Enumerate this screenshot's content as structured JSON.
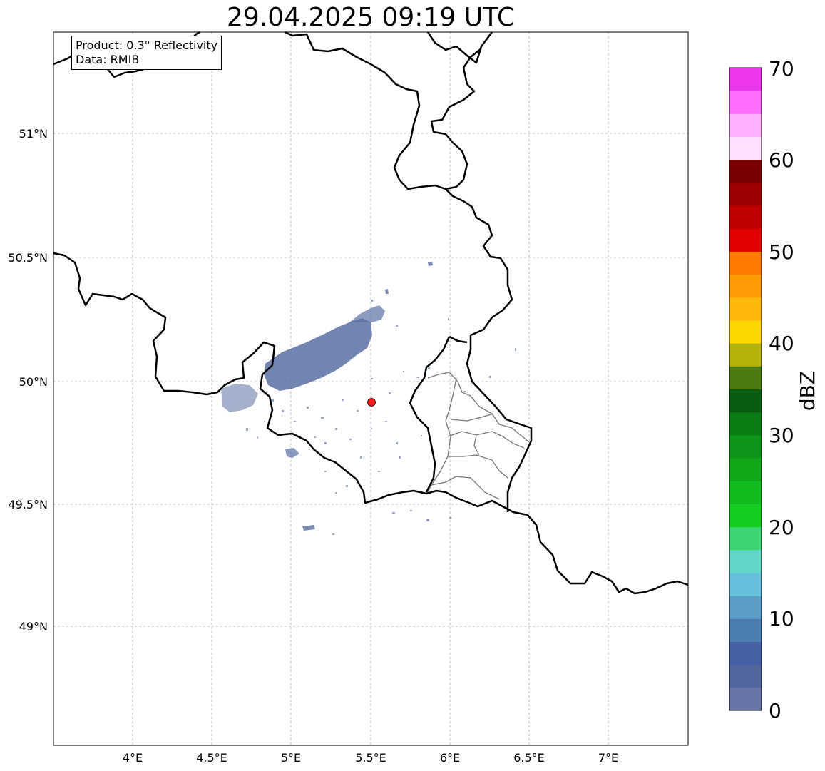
{
  "title": "29.04.2025 09:19 UTC",
  "info": {
    "product": "Product: 0.3° Reflectivity",
    "source": "Data: RMIB"
  },
  "map": {
    "lon_ticks": [
      "4°E",
      "4.5°E",
      "5°E",
      "5.5°E",
      "6°E",
      "6.5°E",
      "7°E"
    ],
    "lat_ticks": [
      "51°N",
      "50.5°N",
      "50°N",
      "49.5°N",
      "49°N"
    ],
    "radar_site": {
      "lon": 5.5,
      "lat": 49.91,
      "color": "#ff1a1a"
    },
    "echo_color": "#5a6fa3"
  },
  "colorbar": {
    "label": "dBZ",
    "ticks": [
      "0",
      "10",
      "20",
      "30",
      "40",
      "50",
      "60",
      "70"
    ],
    "colors": [
      "#6674a8",
      "#52659c",
      "#4560a4",
      "#4c7db0",
      "#5a9ec8",
      "#66c0dc",
      "#62d6c6",
      "#3ed474",
      "#14cc20",
      "#12bb1e",
      "#10a818",
      "#0e9418",
      "#0a7c14",
      "#075c0f",
      "#4b7a10",
      "#b2b20a",
      "#fed700",
      "#feb70a",
      "#fe9a03",
      "#fe7b00",
      "#e20000",
      "#c00000",
      "#9e0000",
      "#780000",
      "#ffe0ff",
      "#ffb0ff",
      "#ff6eff",
      "#ec36ec"
    ]
  }
}
